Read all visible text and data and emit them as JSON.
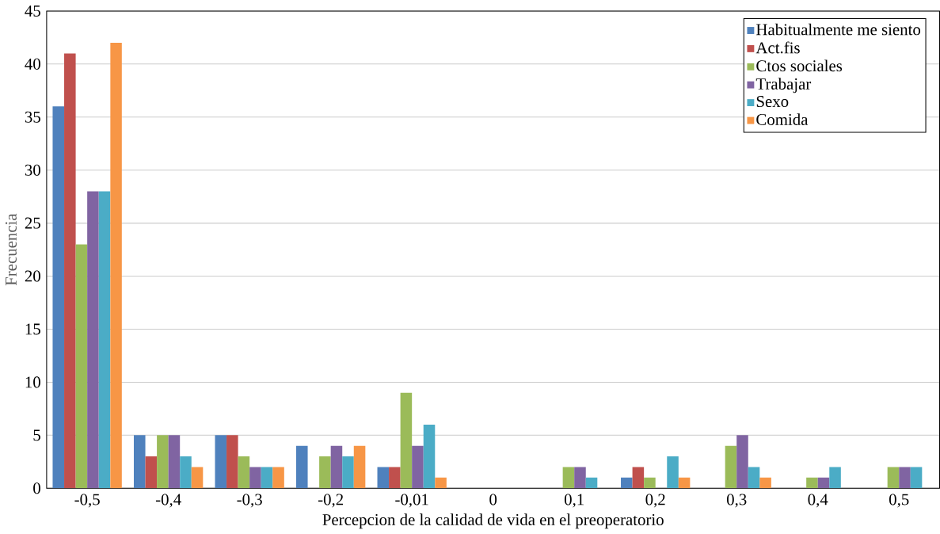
{
  "chart_data": {
    "type": "bar",
    "xlabel": "Percepcion de la calidad de vida en el preoperatorio",
    "ylabel": "Frecuencia",
    "categories": [
      "-0,5",
      "-0,4",
      "-0,3",
      "-0,2",
      "-0,01",
      "0",
      "0,1",
      "0,2",
      "0,3",
      "0,4",
      "0,5"
    ],
    "series": [
      {
        "name": "Habitualmente me siento",
        "color": "#4f81bd",
        "values": [
          36,
          5,
          5,
          4,
          2,
          0,
          0,
          1,
          0,
          0,
          0
        ]
      },
      {
        "name": "Act.fis",
        "color": "#c0504d",
        "values": [
          41,
          3,
          5,
          0,
          2,
          0,
          0,
          2,
          0,
          0,
          0
        ]
      },
      {
        "name": "Ctos sociales",
        "color": "#9bbb59",
        "values": [
          23,
          5,
          3,
          3,
          9,
          0,
          2,
          1,
          4,
          1,
          2
        ]
      },
      {
        "name": "Trabajar",
        "color": "#8064a2",
        "values": [
          28,
          5,
          2,
          4,
          4,
          0,
          2,
          0,
          5,
          1,
          2
        ]
      },
      {
        "name": "Sexo",
        "color": "#4bacc6",
        "values": [
          28,
          3,
          2,
          3,
          6,
          0,
          1,
          3,
          2,
          2,
          2
        ]
      },
      {
        "name": "Comida",
        "color": "#f79646",
        "values": [
          42,
          2,
          2,
          4,
          1,
          0,
          0,
          1,
          1,
          0,
          0
        ]
      }
    ],
    "ylim": [
      0,
      45
    ],
    "yticks": [
      0,
      5,
      10,
      15,
      20,
      25,
      30,
      35,
      40,
      45
    ],
    "grid": "y",
    "legend": "top right"
  }
}
